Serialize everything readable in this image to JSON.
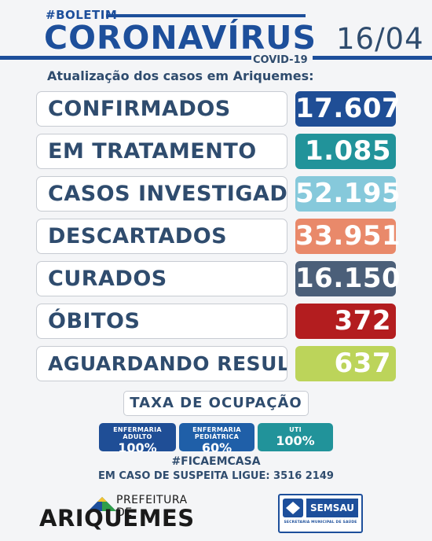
{
  "header": {
    "tag": "#BOLETIM",
    "title": "CORONAVÍRUS",
    "subtitle": "COVID-19",
    "date": "16/04",
    "update_text": "Atualização dos casos em Ariquemes:"
  },
  "rows": [
    {
      "label": "CONFIRMADOS",
      "value": "17.607",
      "color": "#1f4e96"
    },
    {
      "label": "EM TRATAMENTO",
      "value": "1.085",
      "color": "#21939a"
    },
    {
      "label": "CASOS INVESTIGADOS",
      "value": "52.195",
      "color": "#86c9db"
    },
    {
      "label": "DESCARTADOS",
      "value": "33.951",
      "color": "#e9896a"
    },
    {
      "label": "CURADOS",
      "value": "16.150",
      "color": "#4b5f79"
    },
    {
      "label": "ÓBITOS",
      "value": "372",
      "color": "#b31d1f"
    },
    {
      "label": "AGUARDANDO RESULTADO",
      "value": "637",
      "color": "#bcd45a"
    }
  ],
  "occupancy": {
    "title": "TAXA DE OCUPAÇÃO",
    "items": [
      {
        "label": "ENFERMARIA ADULTO",
        "value": "100%",
        "color": "#1f4e96"
      },
      {
        "label": "ENFERMARIA PEDIÁTRICA",
        "value": "60%",
        "color": "#1f5fa8"
      },
      {
        "label": "UTI",
        "value": "100%",
        "color": "#21939a"
      }
    ]
  },
  "footer": {
    "hashtag": "#FICAEMCASA",
    "call": "EM CASO DE SUSPEITA LIGUE: 3516 2149",
    "prefeitura": "PREFEITURA DE",
    "city": "ARIQUEMES",
    "semsau": "SEMSAU",
    "semsau_sub": "SECRETARIA MUNICIPAL DE SAÚDE"
  }
}
